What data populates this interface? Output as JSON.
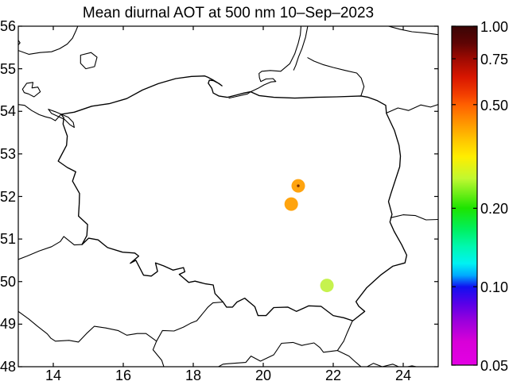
{
  "title": "Mean diurnal AOT at 500 nm 10–Sep–2023",
  "chart_data": {
    "type": "scatter",
    "subtype": "geographic map with station AOT markers",
    "title": "Mean diurnal AOT at 500 nm 10–Sep–2023",
    "region": "Poland and neighbouring borders, Baltic coast",
    "grid": false,
    "background": "#ffffff",
    "line_color": "#000000",
    "x_axis": {
      "range": [
        13,
        25
      ],
      "ticks": [
        {
          "value": 14,
          "label": "14"
        },
        {
          "value": 16,
          "label": "16"
        },
        {
          "value": 18,
          "label": "18"
        },
        {
          "value": 20,
          "label": "20"
        },
        {
          "value": 22,
          "label": "22"
        },
        {
          "value": 24,
          "label": "24"
        }
      ]
    },
    "y_axis": {
      "range": [
        48,
        56
      ],
      "ticks": [
        {
          "value": 56,
          "label": "56"
        },
        {
          "value": 55,
          "label": "55"
        },
        {
          "value": 54,
          "label": "54"
        },
        {
          "value": 53,
          "label": "53"
        },
        {
          "value": 52,
          "label": "52"
        },
        {
          "value": 51,
          "label": "51"
        },
        {
          "value": 50,
          "label": "50"
        },
        {
          "value": 49,
          "label": "49"
        },
        {
          "value": 48,
          "label": "48"
        }
      ]
    },
    "points": [
      {
        "lon": 21.0,
        "lat": 52.25,
        "color": "#FFA40F",
        "aot_estimate": 0.41,
        "center_mark": true
      },
      {
        "lon": 20.8,
        "lat": 51.82,
        "color": "#FFA40F",
        "aot_estimate": 0.4,
        "center_mark": false
      },
      {
        "lon": 21.82,
        "lat": 49.91,
        "color": "#C6F24E",
        "aot_estimate": 0.26,
        "center_mark": false
      }
    ],
    "marker_radius_px": 8.5,
    "colorbar": {
      "scale": "log",
      "min": 0.05,
      "max": 1.0,
      "ticks": [
        {
          "value": 1.0,
          "label": "1.00"
        },
        {
          "value": 0.75,
          "label": "0.75"
        },
        {
          "value": 0.5,
          "label": "0.50"
        },
        {
          "value": 0.2,
          "label": "0.20"
        },
        {
          "value": 0.1,
          "label": "0.10"
        },
        {
          "value": 0.05,
          "label": "0.05"
        }
      ],
      "gradient": [
        {
          "pos": 0.0,
          "color": "#3A0505"
        },
        {
          "pos": 0.05,
          "color": "#5E0404"
        },
        {
          "pos": 0.096,
          "color": "#9E0A02"
        },
        {
          "pos": 0.15,
          "color": "#D81600"
        },
        {
          "pos": 0.2,
          "color": "#F23D00"
        },
        {
          "pos": 0.231,
          "color": "#FF5F00"
        },
        {
          "pos": 0.28,
          "color": "#FF9000"
        },
        {
          "pos": 0.33,
          "color": "#FFC000"
        },
        {
          "pos": 0.385,
          "color": "#FFEE00"
        },
        {
          "pos": 0.45,
          "color": "#C0F830"
        },
        {
          "pos": 0.537,
          "color": "#1DE400"
        },
        {
          "pos": 0.6,
          "color": "#00F060"
        },
        {
          "pos": 0.65,
          "color": "#00F8B0"
        },
        {
          "pos": 0.7,
          "color": "#00F2F2"
        },
        {
          "pos": 0.735,
          "color": "#00AAFF"
        },
        {
          "pos": 0.769,
          "color": "#1010F0"
        },
        {
          "pos": 0.82,
          "color": "#5A00E8"
        },
        {
          "pos": 0.87,
          "color": "#9B00DC"
        },
        {
          "pos": 0.93,
          "color": "#D800D8"
        },
        {
          "pos": 1.0,
          "color": "#E400E4"
        }
      ]
    }
  }
}
